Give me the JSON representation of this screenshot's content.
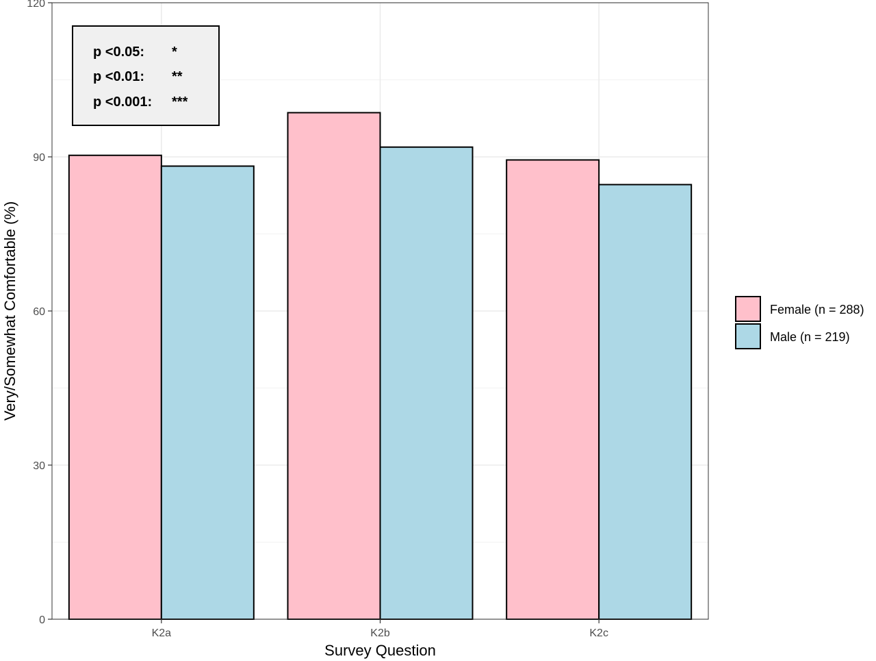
{
  "chart_data": {
    "type": "bar",
    "categories": [
      "K2a",
      "K2b",
      "K2c"
    ],
    "series": [
      {
        "name": "Female (n = 288)",
        "values": [
          90.3,
          98.6,
          89.4
        ],
        "color": "#ffc0cb"
      },
      {
        "name": "Male (n = 219)",
        "values": [
          88.2,
          91.9,
          84.6
        ],
        "color": "#add8e6"
      }
    ],
    "title": "",
    "xlabel": "Survey Question",
    "ylabel": "Very/Somewhat Comfortable (%)",
    "ylim": [
      0,
      120
    ],
    "yticks": [
      0,
      30,
      60,
      90,
      120
    ],
    "grid": true,
    "legend_position": "right",
    "annotation": {
      "lines": [
        {
          "label": "p <0.05:",
          "stars": "*"
        },
        {
          "label": "p <0.01:",
          "stars": "**"
        },
        {
          "label": "p <0.001:",
          "stars": "***"
        }
      ],
      "position": "top-left",
      "background": "#f0f0f0"
    }
  }
}
